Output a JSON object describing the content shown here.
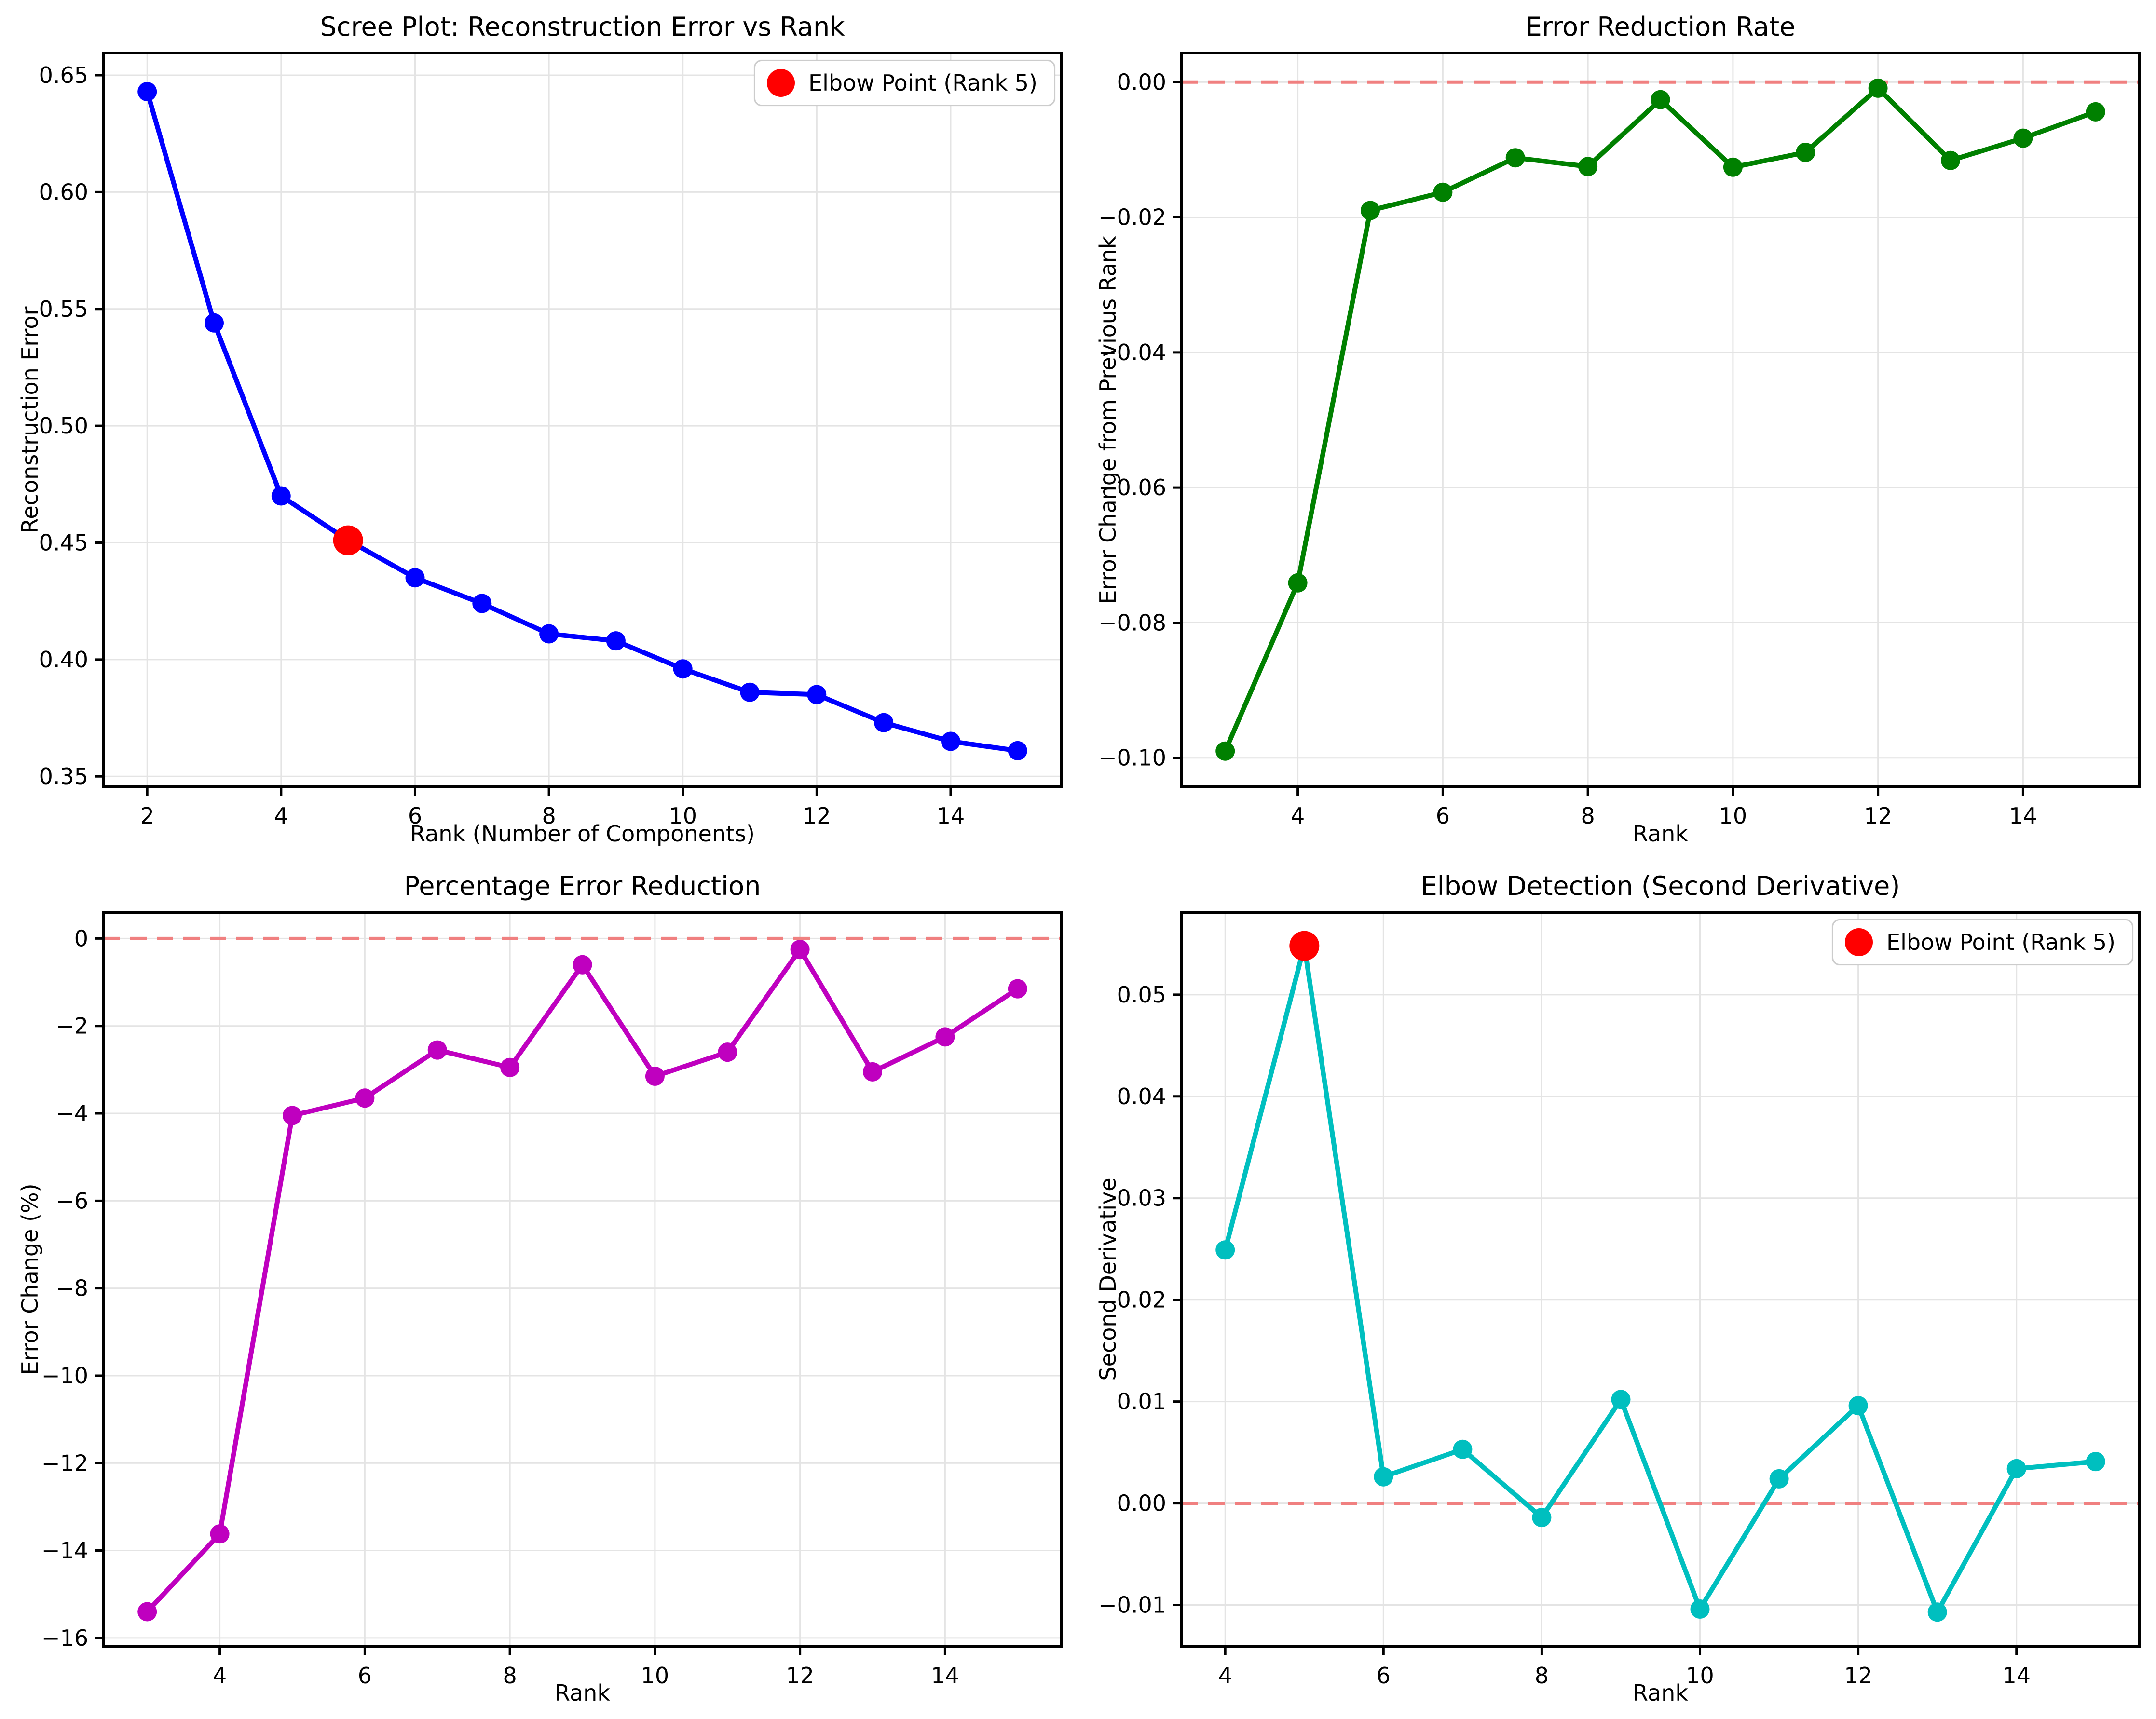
{
  "figure": {
    "background": "#ffffff",
    "grid_color": "#e4e4e4",
    "spine_color": "#000000",
    "tick_color": "#000000",
    "text_color": "#000000",
    "zero_line_color": "#f08080",
    "elbow_color": "#ff0000",
    "legend_border_color": "#cccccc"
  },
  "chart_data": [
    {
      "type": "line",
      "title": "Scree Plot: Reconstruction Error vs Rank",
      "xlabel": "Rank (Number of Components)",
      "ylabel": "Reconstruction Error",
      "line_color": "#0000ff",
      "x": [
        2,
        3,
        4,
        5,
        6,
        7,
        8,
        9,
        10,
        11,
        12,
        13,
        14,
        15
      ],
      "y": [
        0.643,
        0.544,
        0.47,
        0.451,
        0.435,
        0.424,
        0.411,
        0.408,
        0.396,
        0.386,
        0.385,
        0.373,
        0.365,
        0.361
      ],
      "xlim": [
        1.35,
        15.65
      ],
      "ylim": [
        0.3455,
        0.6595
      ],
      "xticks": [
        2,
        4,
        6,
        8,
        10,
        12,
        14
      ],
      "xtick_labels": [
        "2",
        "4",
        "6",
        "8",
        "10",
        "12",
        "14"
      ],
      "yticks": [
        0.65,
        0.6,
        0.55,
        0.5,
        0.45,
        0.4,
        0.35
      ],
      "ytick_labels": [
        "0.65",
        "0.60",
        "0.55",
        "0.50",
        "0.45",
        "0.40",
        "0.35"
      ],
      "grid": true,
      "zero_line": false,
      "elbow_point": {
        "x": 5,
        "y": 0.451
      },
      "legend": {
        "label": "Elbow Point (Rank 5)",
        "position": "top-right"
      }
    },
    {
      "type": "line",
      "title": "Error Reduction Rate",
      "xlabel": "Rank",
      "ylabel": "Error Change from Previous Rank",
      "line_color": "#008000",
      "x": [
        3,
        4,
        5,
        6,
        7,
        8,
        9,
        10,
        11,
        12,
        13,
        14,
        15
      ],
      "y": [
        -0.099,
        -0.0741,
        -0.019,
        -0.0163,
        -0.0112,
        -0.0125,
        -0.0026,
        -0.0126,
        -0.0104,
        -0.0009,
        -0.0116,
        -0.0083,
        -0.0044
      ],
      "xlim": [
        2.4,
        15.6
      ],
      "ylim": [
        -0.1043,
        0.0043
      ],
      "xticks": [
        4,
        6,
        8,
        10,
        12,
        14
      ],
      "xtick_labels": [
        "4",
        "6",
        "8",
        "10",
        "12",
        "14"
      ],
      "yticks": [
        0.0,
        -0.02,
        -0.04,
        -0.06,
        -0.08,
        -0.1
      ],
      "ytick_labels": [
        "0.00",
        "−0.02",
        "−0.04",
        "−0.06",
        "−0.08",
        "−0.10"
      ],
      "grid": true,
      "zero_line": true,
      "elbow_point": null,
      "legend": null
    },
    {
      "type": "line",
      "title": "Percentage Error Reduction",
      "xlabel": "Rank",
      "ylabel": "Error Change (%)",
      "line_color": "#bf00bf",
      "x": [
        3,
        4,
        5,
        6,
        7,
        8,
        9,
        10,
        11,
        12,
        13,
        14,
        15
      ],
      "y": [
        -15.4,
        -13.62,
        -4.05,
        -3.65,
        -2.55,
        -2.95,
        -0.6,
        -3.15,
        -2.6,
        -0.25,
        -3.05,
        -2.25,
        -1.15
      ],
      "xlim": [
        2.4,
        15.6
      ],
      "ylim": [
        -16.2,
        0.6
      ],
      "xticks": [
        4,
        6,
        8,
        10,
        12,
        14
      ],
      "xtick_labels": [
        "4",
        "6",
        "8",
        "10",
        "12",
        "14"
      ],
      "yticks": [
        0,
        -2,
        -4,
        -6,
        -8,
        -10,
        -12,
        -14,
        -16
      ],
      "ytick_labels": [
        "0",
        "−2",
        "−4",
        "−6",
        "−8",
        "−10",
        "−12",
        "−14",
        "−16"
      ],
      "grid": true,
      "zero_line": true,
      "elbow_point": null,
      "legend": null
    },
    {
      "type": "line",
      "title": "Elbow Detection (Second Derivative)",
      "xlabel": "Rank",
      "ylabel": "Second Derivative",
      "line_color": "#00bfbf",
      "x": [
        4,
        5,
        6,
        7,
        8,
        9,
        10,
        11,
        12,
        13,
        14,
        15
      ],
      "y": [
        0.0249,
        0.0548,
        0.0026,
        0.0053,
        -0.0014,
        0.0102,
        -0.0104,
        0.0024,
        0.0096,
        -0.0107,
        0.0034,
        0.0041
      ],
      "xlim": [
        3.45,
        15.55
      ],
      "ylim": [
        -0.0141,
        0.0581
      ],
      "xticks": [
        4,
        6,
        8,
        10,
        12,
        14
      ],
      "xtick_labels": [
        "4",
        "6",
        "8",
        "10",
        "12",
        "14"
      ],
      "yticks": [
        0.05,
        0.04,
        0.03,
        0.02,
        0.01,
        0.0,
        -0.01
      ],
      "ytick_labels": [
        "0.05",
        "0.04",
        "0.03",
        "0.02",
        "0.01",
        "0.00",
        "−0.01"
      ],
      "grid": true,
      "zero_line": true,
      "elbow_point": {
        "x": 5,
        "y": 0.0548
      },
      "legend": {
        "label": "Elbow Point (Rank 5)",
        "position": "top-right"
      }
    }
  ]
}
